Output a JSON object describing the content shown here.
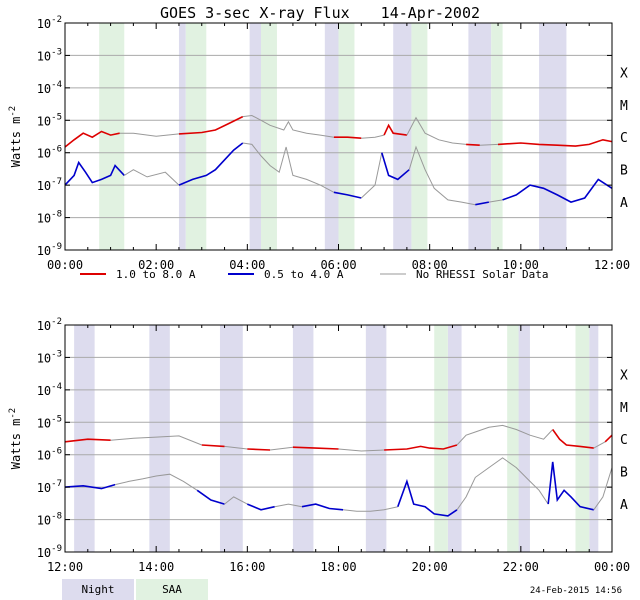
{
  "chart_data": {
    "type": "line",
    "title": "GOES 3-sec X-ray Flux",
    "date": "14-Apr-2002",
    "ylabel": "Watts m",
    "ylabel_exp": "-2",
    "y_scale": "log",
    "ylim": [
      1e-09,
      0.01
    ],
    "y_ticks": [
      {
        "base": "10",
        "exp": "-2",
        "value": 0.01
      },
      {
        "base": "10",
        "exp": "-3",
        "value": 0.001
      },
      {
        "base": "10",
        "exp": "-4",
        "value": 0.0001
      },
      {
        "base": "10",
        "exp": "-5",
        "value": 1e-05
      },
      {
        "base": "10",
        "exp": "-6",
        "value": 1e-06
      },
      {
        "base": "10",
        "exp": "-7",
        "value": 1e-07
      },
      {
        "base": "10",
        "exp": "-8",
        "value": 1e-08
      },
      {
        "base": "10",
        "exp": "-9",
        "value": 1e-09
      }
    ],
    "flare_classes": [
      {
        "label": "X",
        "value": 0.0003
      },
      {
        "label": "M",
        "value": 3e-05
      },
      {
        "label": "C",
        "value": 3e-06
      },
      {
        "label": "B",
        "value": 3e-07
      },
      {
        "label": "A",
        "value": 3e-08
      }
    ],
    "grid": true,
    "legend_position": "between-panels",
    "series_meta": [
      {
        "name": "1.0 to 8.0 A",
        "color": "#dd0000"
      },
      {
        "name": "0.5 to 4.0 A",
        "color": "#0000cc"
      },
      {
        "name": "No RHESSI Solar Data",
        "color": "#999999"
      }
    ],
    "shade_legend": [
      {
        "name": "Night",
        "color": "#dddcee"
      },
      {
        "name": "SAA",
        "color": "#e1f2e1"
      }
    ],
    "panels": [
      {
        "x_range": [
          0,
          12
        ],
        "x_ticks": [
          "00:00",
          "02:00",
          "04:00",
          "06:00",
          "08:00",
          "10:00",
          "12:00"
        ],
        "night": [
          [
            2.5,
            2.65
          ],
          [
            4.05,
            4.3
          ],
          [
            5.7,
            6.0
          ],
          [
            7.2,
            7.6
          ],
          [
            8.85,
            9.35
          ],
          [
            10.4,
            11.0
          ]
        ],
        "saa": [
          [
            0.75,
            1.3
          ],
          [
            2.65,
            3.1
          ],
          [
            4.3,
            4.65
          ],
          [
            6.0,
            6.35
          ],
          [
            7.6,
            7.95
          ],
          [
            9.35,
            9.6
          ]
        ],
        "no_rhessi": [
          [
            1.3,
            2.55
          ],
          [
            3.9,
            6.05
          ],
          [
            6.6,
            7.0
          ],
          [
            7.5,
            8.9
          ],
          [
            9.3,
            9.6
          ]
        ],
        "long": [
          [
            0,
            1.5e-06
          ],
          [
            0.2,
            2.5e-06
          ],
          [
            0.4,
            4e-06
          ],
          [
            0.6,
            3e-06
          ],
          [
            0.8,
            4.5e-06
          ],
          [
            1.0,
            3.5e-06
          ],
          [
            1.2,
            4e-06
          ],
          [
            1.5,
            4e-06
          ],
          [
            2.0,
            3.2e-06
          ],
          [
            2.5,
            3.8e-06
          ],
          [
            3.0,
            4.2e-06
          ],
          [
            3.3,
            5e-06
          ],
          [
            3.6,
            8e-06
          ],
          [
            3.9,
            1.3e-05
          ],
          [
            4.1,
            1.4e-05
          ],
          [
            4.3,
            1e-05
          ],
          [
            4.5,
            7e-06
          ],
          [
            4.8,
            5e-06
          ],
          [
            4.9,
            9e-06
          ],
          [
            5.0,
            5e-06
          ],
          [
            5.3,
            4e-06
          ],
          [
            5.6,
            3.5e-06
          ],
          [
            5.9,
            3e-06
          ],
          [
            6.2,
            3e-06
          ],
          [
            6.5,
            2.8e-06
          ],
          [
            6.8,
            3e-06
          ],
          [
            7.0,
            3.5e-06
          ],
          [
            7.1,
            7e-06
          ],
          [
            7.2,
            4e-06
          ],
          [
            7.5,
            3.5e-06
          ],
          [
            7.7,
            1.2e-05
          ],
          [
            7.9,
            4e-06
          ],
          [
            8.2,
            2.5e-06
          ],
          [
            8.5,
            2e-06
          ],
          [
            8.8,
            1.8e-06
          ],
          [
            9.1,
            1.7e-06
          ],
          [
            9.5,
            1.8e-06
          ],
          [
            10.0,
            2e-06
          ],
          [
            10.4,
            1.8e-06
          ],
          [
            10.8,
            1.7e-06
          ],
          [
            11.2,
            1.6e-06
          ],
          [
            11.5,
            1.8e-06
          ],
          [
            11.8,
            2.5e-06
          ],
          [
            12.0,
            2.2e-06
          ]
        ],
        "short": [
          [
            0,
            1e-07
          ],
          [
            0.2,
            2e-07
          ],
          [
            0.3,
            5e-07
          ],
          [
            0.45,
            2.5e-07
          ],
          [
            0.6,
            1.2e-07
          ],
          [
            0.8,
            1.5e-07
          ],
          [
            1.0,
            2e-07
          ],
          [
            1.1,
            4e-07
          ],
          [
            1.3,
            2e-07
          ],
          [
            1.5,
            3e-07
          ],
          [
            1.8,
            1.8e-07
          ],
          [
            2.2,
            2.5e-07
          ],
          [
            2.5,
            1e-07
          ],
          [
            2.8,
            1.5e-07
          ],
          [
            3.1,
            2e-07
          ],
          [
            3.3,
            3e-07
          ],
          [
            3.5,
            6e-07
          ],
          [
            3.7,
            1.2e-06
          ],
          [
            3.9,
            2e-06
          ],
          [
            4.1,
            1.8e-06
          ],
          [
            4.3,
            8e-07
          ],
          [
            4.5,
            4e-07
          ],
          [
            4.7,
            2.5e-07
          ],
          [
            4.85,
            1.5e-06
          ],
          [
            5.0,
            2e-07
          ],
          [
            5.3,
            1.5e-07
          ],
          [
            5.6,
            1e-07
          ],
          [
            5.9,
            6e-08
          ],
          [
            6.2,
            5e-08
          ],
          [
            6.5,
            4e-08
          ],
          [
            6.8,
            1e-07
          ],
          [
            6.95,
            1e-06
          ],
          [
            7.1,
            2e-07
          ],
          [
            7.3,
            1.5e-07
          ],
          [
            7.55,
            3e-07
          ],
          [
            7.7,
            1.5e-06
          ],
          [
            7.9,
            3e-07
          ],
          [
            8.1,
            8e-08
          ],
          [
            8.4,
            3.5e-08
          ],
          [
            8.7,
            3e-08
          ],
          [
            9.0,
            2.5e-08
          ],
          [
            9.3,
            3e-08
          ],
          [
            9.6,
            3.5e-08
          ],
          [
            9.9,
            5e-08
          ],
          [
            10.2,
            1e-07
          ],
          [
            10.5,
            8e-08
          ],
          [
            10.8,
            5e-08
          ],
          [
            11.1,
            3e-08
          ],
          [
            11.4,
            4e-08
          ],
          [
            11.7,
            1.5e-07
          ],
          [
            12.0,
            8e-08
          ]
        ]
      },
      {
        "x_range": [
          12,
          24
        ],
        "x_ticks": [
          "12:00",
          "14:00",
          "16:00",
          "18:00",
          "20:00",
          "22:00",
          "00:00"
        ],
        "night": [
          [
            12.2,
            12.65
          ],
          [
            13.85,
            14.3
          ],
          [
            15.4,
            15.9
          ],
          [
            17.0,
            17.45
          ],
          [
            18.6,
            19.05
          ],
          [
            20.4,
            20.7
          ],
          [
            21.95,
            22.2
          ],
          [
            23.5,
            23.7
          ]
        ],
        "saa": [
          [
            20.1,
            20.4
          ],
          [
            21.7,
            21.95
          ],
          [
            23.2,
            23.5
          ]
        ],
        "no_rhessi": [
          [
            13.2,
            14.8
          ],
          [
            15.6,
            15.9
          ],
          [
            16.7,
            17.2
          ],
          [
            18.1,
            19.2
          ],
          [
            20.7,
            22.6
          ],
          [
            23.5,
            23.9
          ]
        ],
        "long": [
          [
            12.0,
            2.5e-06
          ],
          [
            12.5,
            3e-06
          ],
          [
            13.0,
            2.8e-06
          ],
          [
            13.5,
            3.2e-06
          ],
          [
            14.0,
            3.5e-06
          ],
          [
            14.5,
            3.8e-06
          ],
          [
            15.0,
            2e-06
          ],
          [
            15.5,
            1.8e-06
          ],
          [
            16.0,
            1.5e-06
          ],
          [
            16.5,
            1.4e-06
          ],
          [
            17.0,
            1.7e-06
          ],
          [
            17.5,
            1.6e-06
          ],
          [
            18.0,
            1.5e-06
          ],
          [
            18.5,
            1.3e-06
          ],
          [
            19.0,
            1.4e-06
          ],
          [
            19.5,
            1.5e-06
          ],
          [
            19.8,
            1.8e-06
          ],
          [
            20.0,
            1.6e-06
          ],
          [
            20.3,
            1.5e-06
          ],
          [
            20.6,
            2e-06
          ],
          [
            20.8,
            4e-06
          ],
          [
            21.0,
            5e-06
          ],
          [
            21.3,
            7e-06
          ],
          [
            21.6,
            8e-06
          ],
          [
            21.9,
            6e-06
          ],
          [
            22.2,
            4e-06
          ],
          [
            22.5,
            3e-06
          ],
          [
            22.7,
            6e-06
          ],
          [
            22.85,
            3e-06
          ],
          [
            23.0,
            2e-06
          ],
          [
            23.3,
            1.8e-06
          ],
          [
            23.6,
            1.6e-06
          ],
          [
            23.85,
            2.5e-06
          ],
          [
            24.0,
            4e-06
          ]
        ],
        "short": [
          [
            12.0,
            1e-07
          ],
          [
            12.4,
            1.1e-07
          ],
          [
            12.8,
            9e-08
          ],
          [
            13.1,
            1.2e-07
          ],
          [
            13.4,
            1.5e-07
          ],
          [
            13.7,
            1.8e-07
          ],
          [
            14.0,
            2.2e-07
          ],
          [
            14.3,
            2.5e-07
          ],
          [
            14.6,
            1.5e-07
          ],
          [
            14.9,
            8e-08
          ],
          [
            15.2,
            4e-08
          ],
          [
            15.5,
            3e-08
          ],
          [
            15.7,
            5e-08
          ],
          [
            16.0,
            3e-08
          ],
          [
            16.3,
            2e-08
          ],
          [
            16.6,
            2.5e-08
          ],
          [
            16.9,
            3e-08
          ],
          [
            17.2,
            2.5e-08
          ],
          [
            17.5,
            3e-08
          ],
          [
            17.8,
            2.2e-08
          ],
          [
            18.1,
            2e-08
          ],
          [
            18.4,
            1.8e-08
          ],
          [
            18.7,
            1.8e-08
          ],
          [
            19.0,
            2e-08
          ],
          [
            19.3,
            2.5e-08
          ],
          [
            19.5,
            1.5e-07
          ],
          [
            19.65,
            3e-08
          ],
          [
            19.9,
            2.5e-08
          ],
          [
            20.1,
            1.5e-08
          ],
          [
            20.4,
            1.3e-08
          ],
          [
            20.6,
            2e-08
          ],
          [
            20.8,
            5e-08
          ],
          [
            21.0,
            2e-07
          ],
          [
            21.3,
            4e-07
          ],
          [
            21.6,
            8e-07
          ],
          [
            21.9,
            4e-07
          ],
          [
            22.2,
            1.5e-07
          ],
          [
            22.4,
            8e-08
          ],
          [
            22.6,
            3e-08
          ],
          [
            22.7,
            6e-07
          ],
          [
            22.8,
            4e-08
          ],
          [
            22.95,
            8e-08
          ],
          [
            23.1,
            5e-08
          ],
          [
            23.3,
            2.5e-08
          ],
          [
            23.6,
            2e-08
          ],
          [
            23.8,
            5e-08
          ],
          [
            24.0,
            4e-07
          ]
        ]
      }
    ]
  },
  "footer": {
    "timestamp": "24-Feb-2015 14:56"
  }
}
